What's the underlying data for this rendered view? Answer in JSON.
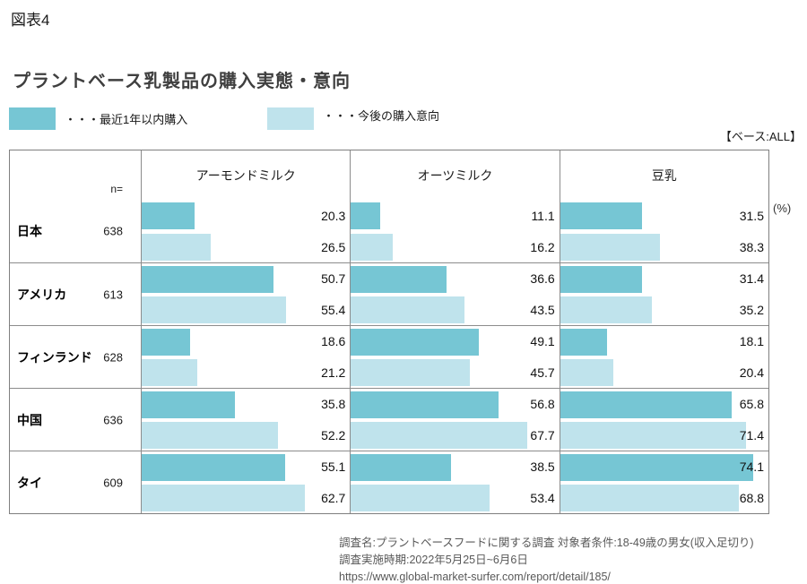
{
  "figure_label": "図表4",
  "title": "プラントベース乳製品の購入実態・意向",
  "legend": {
    "recent": {
      "label": "・・・最近1年以内購入",
      "color": "#76C6D4"
    },
    "future": {
      "label": "・・・今後の購入意向",
      "color": "#BFE3EC"
    }
  },
  "base_note": "【ベース:ALL】",
  "n_header_label": "n=",
  "unit_label": "(%)",
  "chart_data": {
    "type": "bar",
    "title": "プラントベース乳製品の購入実態・意向",
    "orientation": "horizontal",
    "xlim": [
      0,
      80
    ],
    "grid": false,
    "legend_position": "top",
    "categories": [
      "アーモンドミルク",
      "オーツミルク",
      "豆乳"
    ],
    "series_names": [
      "最近1年以内購入",
      "今後の購入意向"
    ],
    "colors": {
      "recent": "#76C6D4",
      "future": "#BFE3EC"
    },
    "rows": [
      {
        "country": "日本",
        "n": "638",
        "recent": [
          20.3,
          11.1,
          31.5
        ],
        "future": [
          26.5,
          16.2,
          38.3
        ]
      },
      {
        "country": "アメリカ",
        "n": "613",
        "recent": [
          50.7,
          36.6,
          31.4
        ],
        "future": [
          55.4,
          43.5,
          35.2
        ]
      },
      {
        "country": "フィンランド",
        "n": "628",
        "recent": [
          18.6,
          49.1,
          18.1
        ],
        "future": [
          21.2,
          45.7,
          20.4
        ]
      },
      {
        "country": "中国",
        "n": "636",
        "recent": [
          35.8,
          56.8,
          65.8
        ],
        "future": [
          52.2,
          67.7,
          71.4
        ]
      },
      {
        "country": "タイ",
        "n": "609",
        "recent": [
          55.1,
          38.5,
          74.1
        ],
        "future": [
          62.7,
          53.4,
          68.8
        ]
      }
    ]
  },
  "footer": {
    "line1": "調査名:プラントベースフードに関する調査 対象者条件:18-49歳の男女(収入足切り)",
    "line2": "調査実施時期:2022年5月25日~6月6日",
    "line3": "https://www.global-market-surfer.com/report/detail/185/"
  }
}
